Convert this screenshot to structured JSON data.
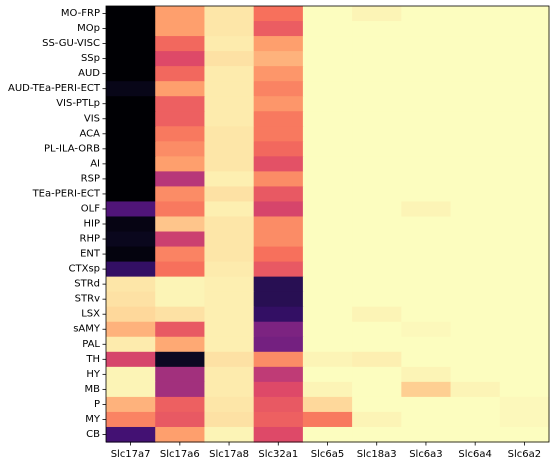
{
  "chart_data": {
    "type": "heatmap",
    "title": "",
    "xlabel": "",
    "ylabel": "",
    "colormap": "magma",
    "grid": false,
    "legend": "none",
    "columns": [
      "Slc17a7",
      "Slc17a6",
      "Slc17a8",
      "Slc32a1",
      "Slc6a5",
      "Slc18a3",
      "Slc6a3",
      "Slc6a4",
      "Slc6a2"
    ],
    "rows": [
      "MO-FRP",
      "MOp",
      "SS-GU-VISC",
      "SSp",
      "AUD",
      "AUD-TEa-PERI-ECT",
      "VIS-PTLp",
      "VIS",
      "ACA",
      "PL-ILA-ORB",
      "AI",
      "RSP",
      "TEa-PERI-ECT",
      "OLF",
      "HIP",
      "RHP",
      "ENT",
      "CTXsp",
      "STRd",
      "STRv",
      "LSX",
      "sAMY",
      "PAL",
      "TH",
      "HY",
      "MB",
      "P",
      "MY",
      "CB"
    ],
    "values": [
      [
        0.0,
        0.8,
        0.95,
        0.7,
        1.0,
        0.98,
        1.0,
        1.0,
        1.0
      ],
      [
        0.0,
        0.8,
        0.95,
        0.65,
        1.0,
        1.0,
        1.0,
        1.0,
        1.0
      ],
      [
        0.0,
        0.68,
        0.96,
        0.8,
        1.0,
        1.0,
        1.0,
        1.0,
        1.0
      ],
      [
        0.0,
        0.6,
        0.94,
        0.84,
        1.0,
        1.0,
        1.0,
        1.0,
        1.0
      ],
      [
        0.0,
        0.68,
        0.96,
        0.78,
        1.0,
        1.0,
        1.0,
        1.0,
        1.0
      ],
      [
        0.04,
        0.8,
        0.96,
        0.74,
        1.0,
        1.0,
        1.0,
        1.0,
        1.0
      ],
      [
        0.0,
        0.66,
        0.96,
        0.78,
        1.0,
        1.0,
        1.0,
        1.0,
        1.0
      ],
      [
        0.0,
        0.66,
        0.96,
        0.72,
        1.0,
        1.0,
        1.0,
        1.0,
        1.0
      ],
      [
        0.0,
        0.72,
        0.95,
        0.72,
        1.0,
        1.0,
        1.0,
        1.0,
        1.0
      ],
      [
        0.0,
        0.76,
        0.95,
        0.68,
        1.0,
        1.0,
        1.0,
        1.0,
        1.0
      ],
      [
        0.0,
        0.8,
        0.95,
        0.62,
        1.0,
        1.0,
        1.0,
        1.0,
        1.0
      ],
      [
        0.0,
        0.5,
        0.97,
        0.76,
        1.0,
        1.0,
        1.0,
        1.0,
        1.0
      ],
      [
        0.0,
        0.76,
        0.94,
        0.64,
        1.0,
        1.0,
        1.0,
        1.0,
        1.0
      ],
      [
        0.25,
        0.72,
        0.97,
        0.58,
        1.0,
        1.0,
        0.98,
        1.0,
        1.0
      ],
      [
        0.03,
        0.88,
        0.95,
        0.76,
        1.0,
        1.0,
        1.0,
        1.0,
        1.0
      ],
      [
        0.05,
        0.55,
        0.95,
        0.76,
        1.0,
        1.0,
        1.0,
        1.0,
        1.0
      ],
      [
        0.02,
        0.74,
        0.95,
        0.7,
        1.0,
        1.0,
        1.0,
        1.0,
        1.0
      ],
      [
        0.18,
        0.7,
        0.96,
        0.64,
        1.0,
        1.0,
        1.0,
        1.0,
        1.0
      ],
      [
        0.95,
        0.98,
        0.97,
        0.15,
        1.0,
        1.0,
        1.0,
        1.0,
        1.0
      ],
      [
        0.94,
        0.98,
        0.97,
        0.15,
        1.0,
        1.0,
        1.0,
        1.0,
        1.0
      ],
      [
        0.92,
        0.94,
        0.97,
        0.18,
        1.0,
        0.98,
        1.0,
        1.0,
        1.0
      ],
      [
        0.84,
        0.64,
        0.97,
        0.36,
        1.0,
        1.0,
        0.99,
        1.0,
        1.0
      ],
      [
        0.96,
        0.82,
        0.97,
        0.34,
        1.0,
        1.0,
        1.0,
        1.0,
        1.0
      ],
      [
        0.58,
        0.06,
        0.94,
        0.76,
        0.98,
        0.97,
        1.0,
        1.0,
        1.0
      ],
      [
        0.98,
        0.45,
        0.96,
        0.52,
        1.0,
        1.0,
        0.98,
        1.0,
        1.0
      ],
      [
        0.98,
        0.45,
        0.96,
        0.6,
        0.98,
        1.0,
        0.9,
        0.98,
        1.0
      ],
      [
        0.84,
        0.66,
        0.95,
        0.64,
        0.92,
        1.0,
        1.0,
        1.0,
        0.99
      ],
      [
        0.74,
        0.64,
        0.94,
        0.66,
        0.72,
        0.98,
        1.0,
        1.0,
        0.99
      ],
      [
        0.22,
        0.8,
        0.98,
        0.6,
        1.0,
        1.0,
        1.0,
        1.0,
        1.0
      ]
    ]
  }
}
